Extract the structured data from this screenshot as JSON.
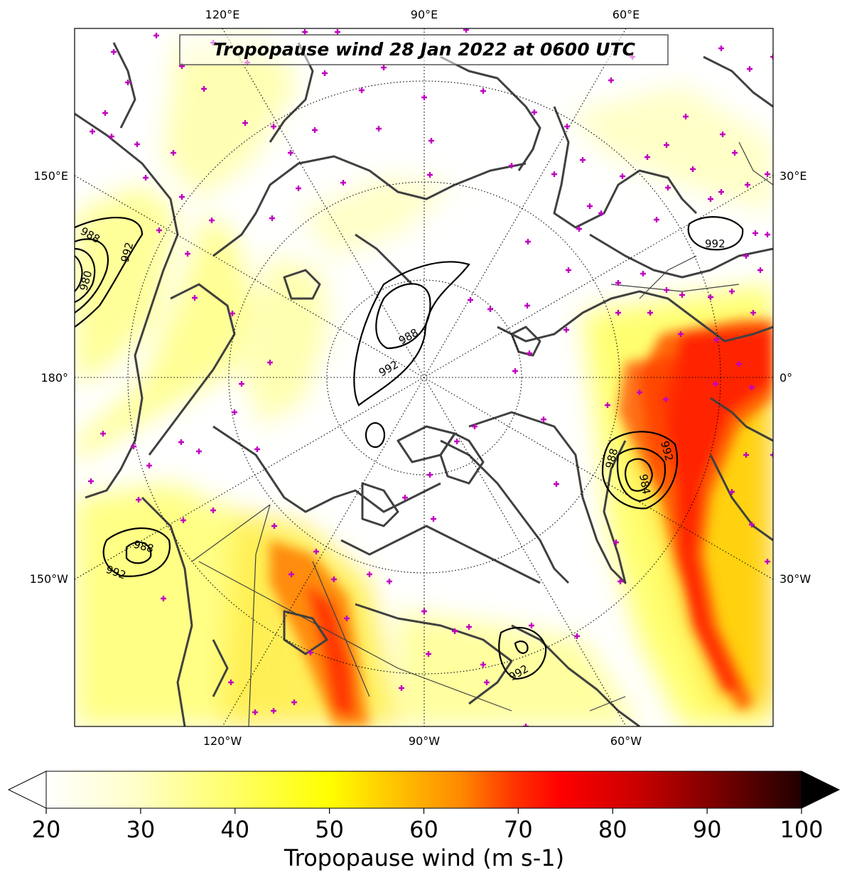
{
  "map": {
    "title": "Tropopause wind 28 Jan 2022 at 0600 UTC",
    "projection": "north-polar-stereographic",
    "lon_labels_top": [
      "120°E",
      "90°E",
      "60°E"
    ],
    "lon_labels_bottom": [
      "120°W",
      "90°W",
      "60°W"
    ],
    "lon_labels_left": [
      "150°E",
      "180°",
      "150°W"
    ],
    "lon_labels_right": [
      "30°E",
      "0°",
      "30°W"
    ],
    "pressure_contours": [
      {
        "value": "988",
        "label": "988"
      },
      {
        "value": "992",
        "label": "992"
      },
      {
        "value": "980",
        "label": "980"
      },
      {
        "value": "984",
        "label": "984"
      }
    ],
    "colors": {
      "coast": "#404040",
      "station_marker": "#c000c0",
      "contour": "#000000",
      "jet_low": "#ffff80",
      "jet_mid": "#ffcc00",
      "jet_high": "#ff2000"
    }
  },
  "colorbar": {
    "label": "Tropopause wind (m s-1)",
    "ticks": [
      "20",
      "30",
      "40",
      "50",
      "60",
      "70",
      "80",
      "90",
      "100"
    ],
    "min": 20,
    "max": 100,
    "extend": "both"
  }
}
